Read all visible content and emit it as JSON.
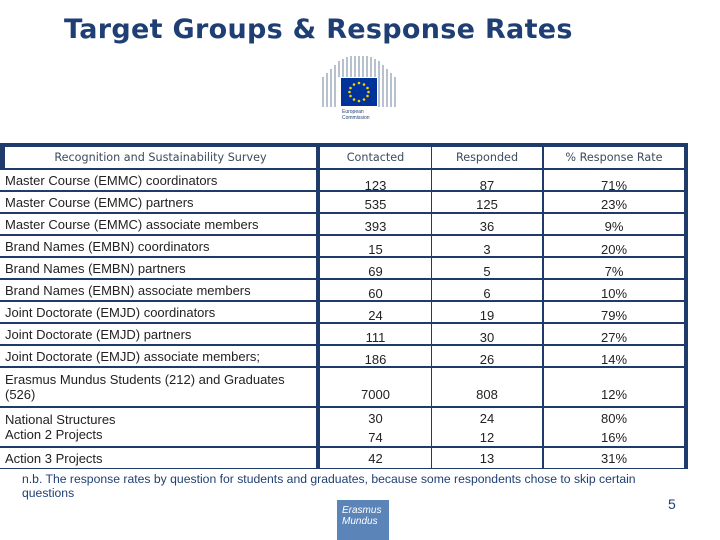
{
  "title": "Target Groups & Response Rates",
  "logo": {
    "line1": "European",
    "line2": "Commission",
    "flag_color": "#003399"
  },
  "table": {
    "headers": {
      "group": "Recognition and Sustainability Survey",
      "contacted": "Contacted",
      "responded": "Responded",
      "rate": "% Response Rate"
    },
    "rows": [
      {
        "group": "Master Course (EMMC) coordinators",
        "contacted": "123",
        "responded": "87",
        "rate": "71%"
      },
      {
        "group": "Master Course (EMMC) partners",
        "contacted": "535",
        "responded": "125",
        "rate": "23%"
      },
      {
        "group": "Master Course (EMMC) associate members",
        "contacted": "393",
        "responded": "36",
        "rate": "9%"
      },
      {
        "group": "Brand Names (EMBN) coordinators",
        "contacted": "15",
        "responded": "3",
        "rate": "20%"
      },
      {
        "group": "Brand Names (EMBN) partners",
        "contacted": "69",
        "responded": "5",
        "rate": "7%"
      },
      {
        "group": "Brand Names (EMBN) associate members",
        "contacted": "60",
        "responded": "6",
        "rate": "10%"
      },
      {
        "group": "Joint Doctorate (EMJD) coordinators",
        "contacted": "24",
        "responded": "19",
        "rate": "79%"
      },
      {
        "group": "Joint Doctorate (EMJD) partners",
        "contacted": "111",
        "responded": "30",
        "rate": "27%"
      },
      {
        "group": "Joint Doctorate (EMJD) associate members;",
        "contacted": "186",
        "responded": "26",
        "rate": "14%"
      },
      {
        "group_line1": "Erasmus Mundus Students (212) and Graduates",
        "group_line2": "(526)",
        "contacted": "7000",
        "responded": "808",
        "rate": "12%"
      },
      {
        "group_line1": "National Structures",
        "group_line2": "Action 2 Projects",
        "contacted_line1": "30",
        "contacted_line2": "74",
        "responded_line1": "24",
        "responded_line2": "12",
        "rate_line1": "80%",
        "rate_line2": "16%"
      },
      {
        "group": "Action 3 Projects",
        "contacted": "42",
        "responded": "13",
        "rate": "31%"
      }
    ]
  },
  "note": "n.b. The response rates by question for students and graduates, because some respondents chose to skip certain questions",
  "page_number": "5",
  "erasmus_logo": {
    "line1": "Erasmus",
    "line2": "Mundus"
  }
}
